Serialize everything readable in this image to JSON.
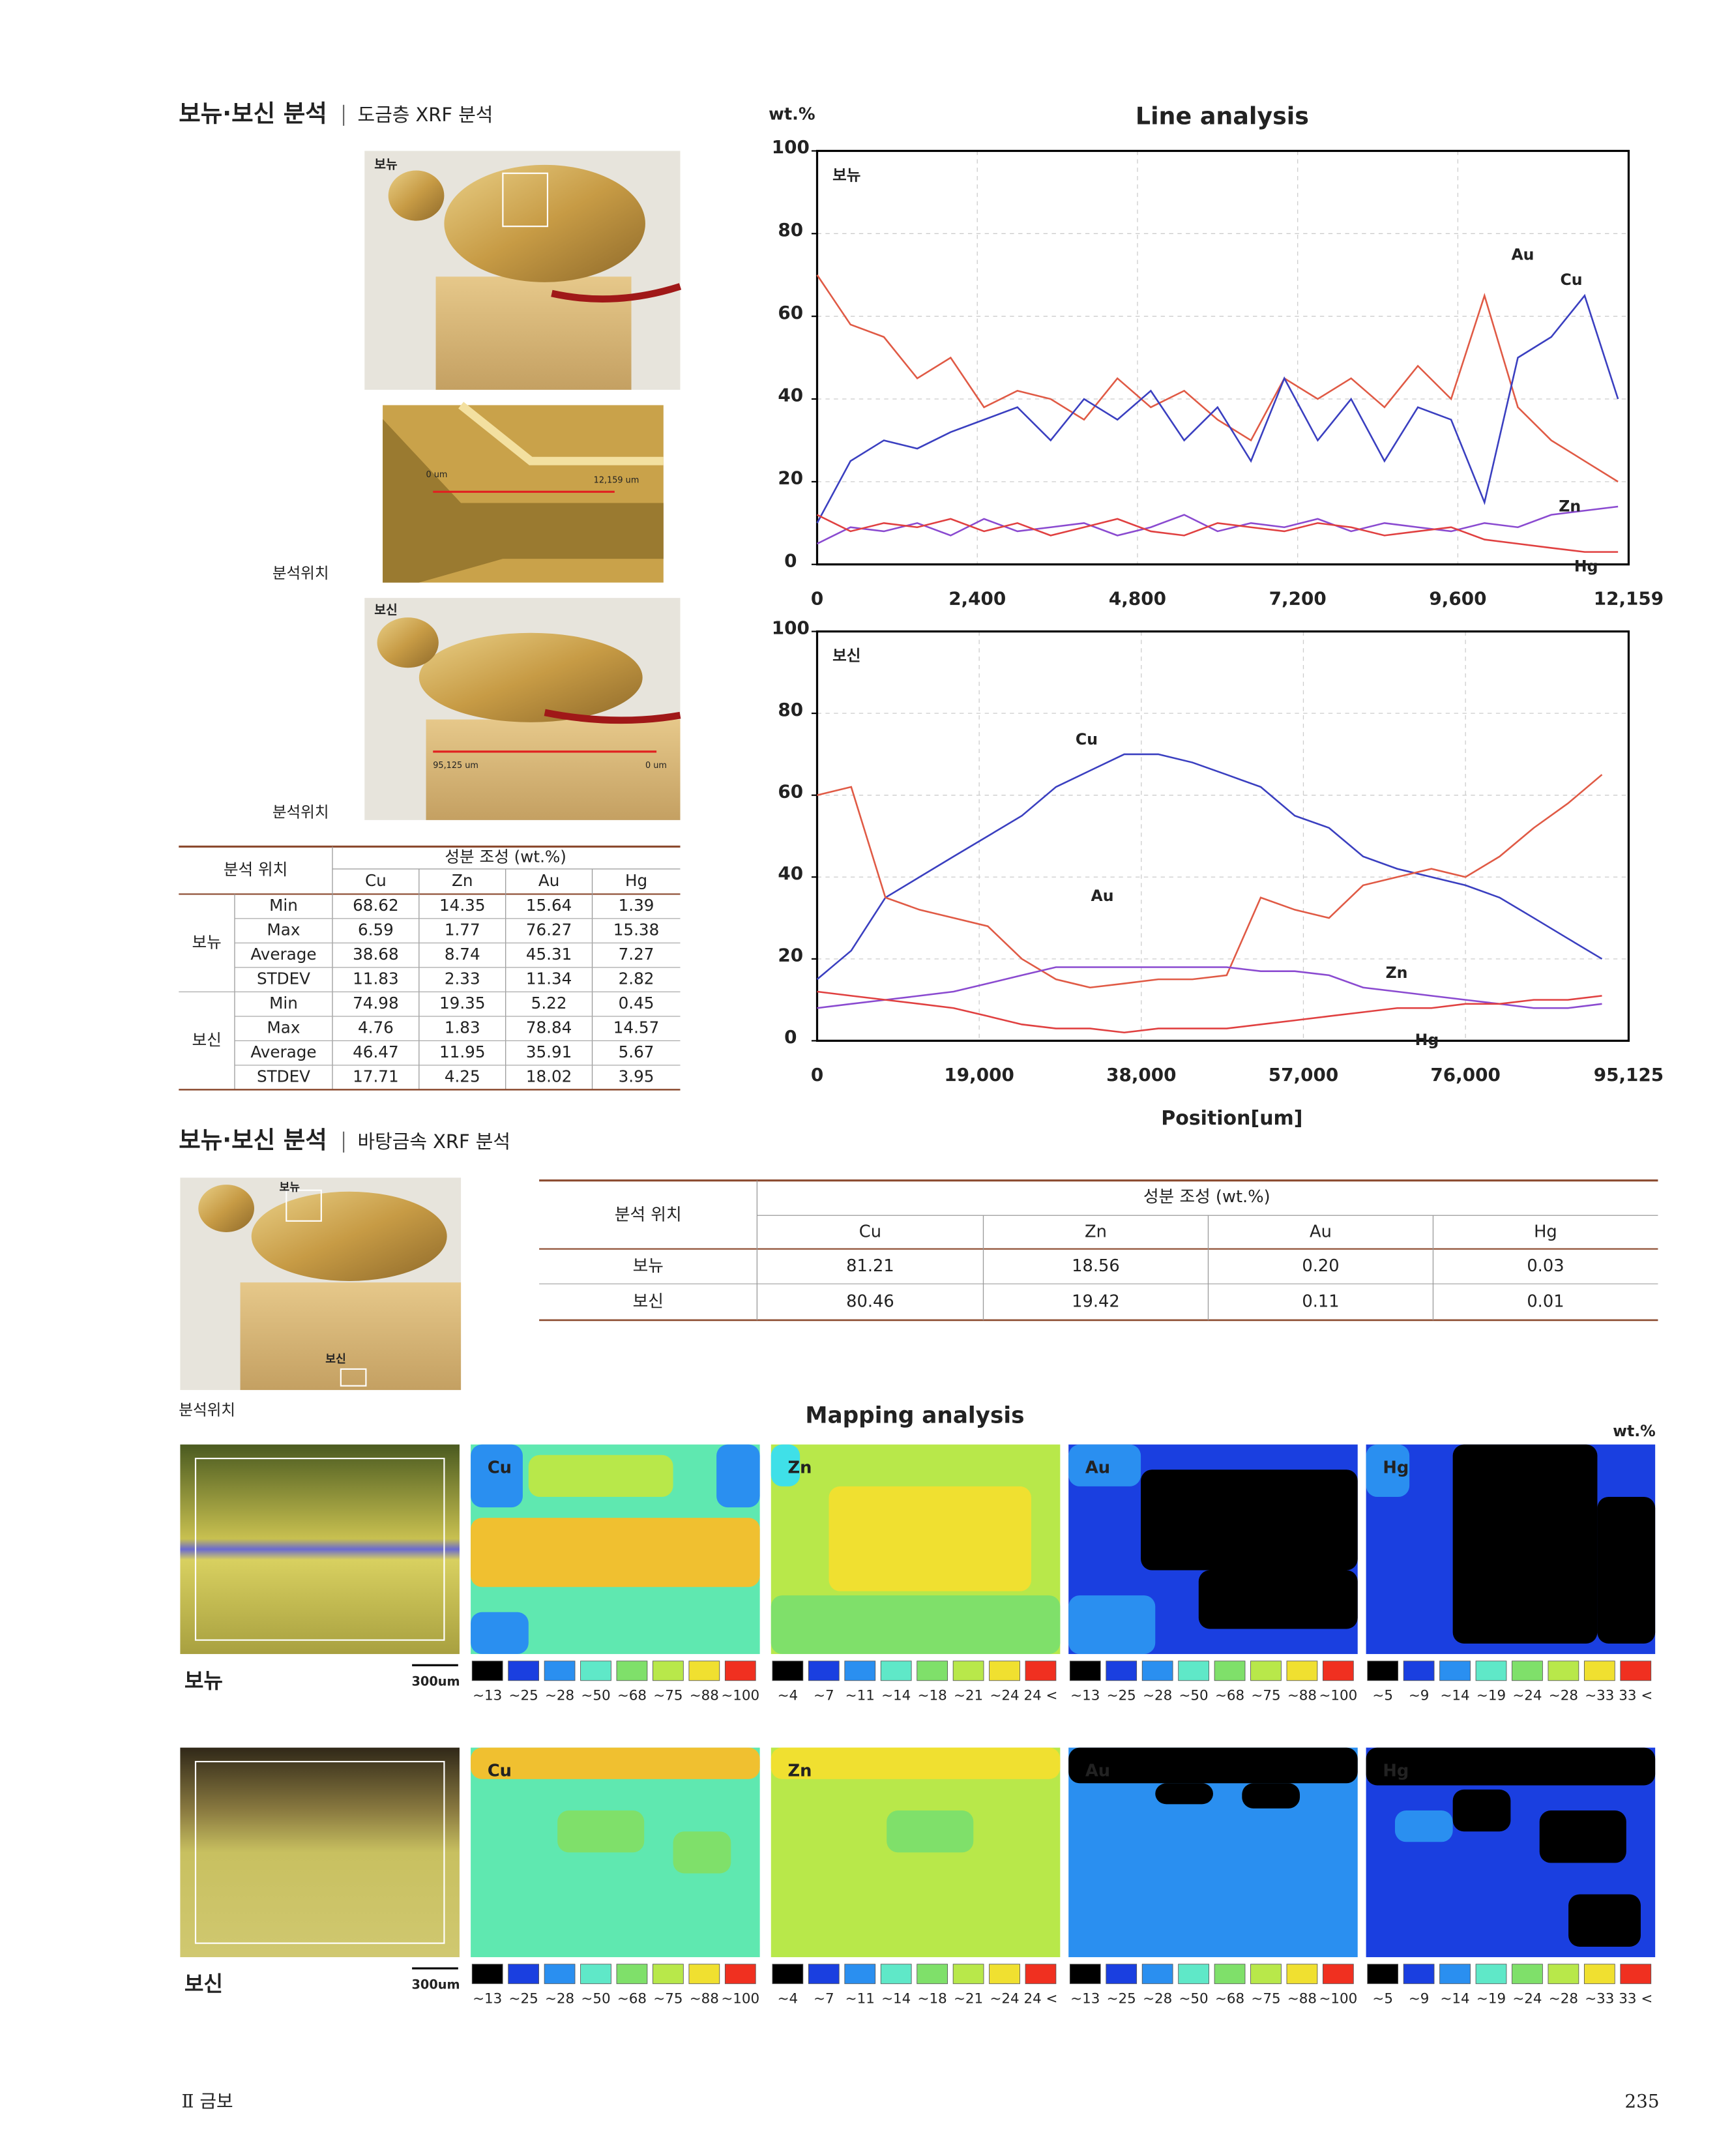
{
  "section1": {
    "title": "보뉴·보신 분석",
    "subtitle": "도금층 XRF 분석"
  },
  "photos": {
    "label1": "보뉴",
    "label2": "보신",
    "scale1_start": "0 um",
    "scale1_end": "12,159 um",
    "scale2_start": "95,125 um",
    "scale2_end": "0 um",
    "caption1": "분석위치",
    "caption2": "분석위치"
  },
  "table1": {
    "header_loc": "분석 위치",
    "header_comp": "성분 조성 (wt.%)",
    "columns": [
      "Cu",
      "Zn",
      "Au",
      "Hg"
    ],
    "groups": [
      {
        "name": "보뉴",
        "rows": [
          [
            "Min",
            "68.62",
            "14.35",
            "15.64",
            "1.39"
          ],
          [
            "Max",
            "6.59",
            "1.77",
            "76.27",
            "15.38"
          ],
          [
            "Average",
            "38.68",
            "8.74",
            "45.31",
            "7.27"
          ],
          [
            "STDEV",
            "11.83",
            "2.33",
            "11.34",
            "2.82"
          ]
        ]
      },
      {
        "name": "보신",
        "rows": [
          [
            "Min",
            "74.98",
            "19.35",
            "5.22",
            "0.45"
          ],
          [
            "Max",
            "4.76",
            "1.83",
            "78.84",
            "14.57"
          ],
          [
            "Average",
            "46.47",
            "11.95",
            "35.91",
            "5.67"
          ],
          [
            "STDEV",
            "17.71",
            "4.25",
            "18.02",
            "3.95"
          ]
        ]
      }
    ]
  },
  "line_analysis": {
    "title": "Line analysis",
    "y_unit": "wt.%",
    "x_label": "Position[um]",
    "charts": [
      {
        "type": "line",
        "label": "보뉴",
        "xlim": [
          0,
          12159
        ],
        "ylim": [
          0,
          100
        ],
        "xticks": [
          0,
          {
            "value": 2400,
            "label": "2,400"
          },
          {
            "value": 4800,
            "label": "4,800"
          },
          {
            "value": 7200,
            "label": "7,200"
          },
          {
            "value": 9600,
            "label": "9,600"
          },
          {
            "value": 12159,
            "label": "12,159"
          }
        ],
        "yticks": [
          0,
          20,
          40,
          60,
          80,
          100
        ],
        "x": [
          0,
          500,
          1000,
          1500,
          2000,
          2500,
          3000,
          3500,
          4000,
          4500,
          5000,
          5500,
          6000,
          6500,
          7000,
          7500,
          8000,
          8500,
          9000,
          9500,
          10000,
          10500,
          11000,
          11500,
          12000
        ],
        "series": [
          {
            "name": "Au",
            "color": "#e05a45",
            "values": [
              70,
              58,
              55,
              45,
              50,
              38,
              42,
              40,
              35,
              45,
              38,
              42,
              35,
              30,
              45,
              40,
              45,
              38,
              48,
              40,
              65,
              38,
              30,
              25,
              20
            ]
          },
          {
            "name": "Cu",
            "color": "#3a3fc0",
            "values": [
              10,
              25,
              30,
              28,
              32,
              35,
              38,
              30,
              40,
              35,
              42,
              30,
              38,
              25,
              45,
              30,
              40,
              25,
              38,
              35,
              15,
              50,
              55,
              65,
              40
            ]
          },
          {
            "name": "Zn",
            "color": "#8a4ad0",
            "values": [
              5,
              9,
              8,
              10,
              7,
              11,
              8,
              9,
              10,
              7,
              9,
              12,
              8,
              10,
              9,
              11,
              8,
              10,
              9,
              8,
              10,
              9,
              12,
              13,
              14
            ]
          },
          {
            "name": "Hg",
            "color": "#e04040",
            "values": [
              12,
              8,
              10,
              9,
              11,
              8,
              10,
              7,
              9,
              11,
              8,
              7,
              10,
              9,
              8,
              10,
              9,
              7,
              8,
              9,
              6,
              5,
              4,
              3,
              3
            ]
          }
        ]
      },
      {
        "type": "line",
        "label": "보신",
        "xlim": [
          0,
          95125
        ],
        "ylim": [
          0,
          100
        ],
        "xticks": [
          0,
          {
            "value": 19000,
            "label": "19,000"
          },
          {
            "value": 38000,
            "label": "38,000"
          },
          {
            "value": 57000,
            "label": "57,000"
          },
          {
            "value": 76000,
            "label": "76,000"
          },
          {
            "value": 95125,
            "label": "95,125"
          }
        ],
        "yticks": [
          0,
          20,
          40,
          60,
          80,
          100
        ],
        "x": [
          0,
          4000,
          8000,
          12000,
          16000,
          20000,
          24000,
          28000,
          32000,
          36000,
          40000,
          44000,
          48000,
          52000,
          56000,
          60000,
          64000,
          68000,
          72000,
          76000,
          80000,
          84000,
          88000,
          92000
        ],
        "series": [
          {
            "name": "Cu",
            "color": "#3a3fc0",
            "values": [
              15,
              22,
              35,
              40,
              45,
              50,
              55,
              62,
              66,
              70,
              70,
              68,
              65,
              62,
              55,
              52,
              45,
              42,
              40,
              38,
              35,
              30,
              25,
              20
            ]
          },
          {
            "name": "Au",
            "color": "#e05a45",
            "values": [
              60,
              62,
              35,
              32,
              30,
              28,
              20,
              15,
              13,
              14,
              15,
              15,
              16,
              35,
              32,
              30,
              38,
              40,
              42,
              40,
              45,
              52,
              58,
              65
            ]
          },
          {
            "name": "Zn",
            "color": "#8a4ad0",
            "values": [
              8,
              9,
              10,
              11,
              12,
              14,
              16,
              18,
              18,
              18,
              18,
              18,
              18,
              17,
              17,
              16,
              13,
              12,
              11,
              10,
              9,
              8,
              8,
              9
            ]
          },
          {
            "name": "Hg",
            "color": "#e04040",
            "values": [
              12,
              11,
              10,
              9,
              8,
              6,
              4,
              3,
              3,
              2,
              3,
              3,
              3,
              4,
              5,
              6,
              7,
              8,
              8,
              9,
              9,
              10,
              10,
              11
            ]
          }
        ]
      }
    ]
  },
  "section2": {
    "title": "보뉴·보신 분석",
    "subtitle": "바탕금속 XRF 분석",
    "photo_label1": "보뉴",
    "photo_label2": "보신",
    "caption": "분석위치"
  },
  "table2": {
    "header_loc": "분석 위치",
    "header_comp": "성분 조성 (wt.%)",
    "columns": [
      "Cu",
      "Zn",
      "Au",
      "Hg"
    ],
    "rows": [
      [
        "보뉴",
        "81.21",
        "18.56",
        "0.20",
        "0.03"
      ],
      [
        "보신",
        "80.46",
        "19.42",
        "0.11",
        "0.01"
      ]
    ]
  },
  "mapping": {
    "title": "Mapping analysis",
    "unit": "wt.%",
    "rows": [
      {
        "label": "보뉴",
        "scale": "300um",
        "panels": [
          {
            "element": "Cu",
            "legend": [
              "~13",
              "~25",
              "~28",
              "~50",
              "~68",
              "~75",
              "~88",
              "~100"
            ]
          },
          {
            "element": "Zn",
            "legend": [
              "~4",
              "~7",
              "~11",
              "~14",
              "~18",
              "~21",
              "~24",
              "24 <"
            ]
          },
          {
            "element": "Au",
            "legend": [
              "~13",
              "~25",
              "~28",
              "~50",
              "~68",
              "~75",
              "~88",
              "~100"
            ]
          },
          {
            "element": "Hg",
            "legend": [
              "~5",
              "~9",
              "~14",
              "~19",
              "~24",
              "~28",
              "~33",
              "33 <"
            ]
          }
        ]
      },
      {
        "label": "보신",
        "scale": "300um",
        "panels": [
          {
            "element": "Cu",
            "legend": [
              "~13",
              "~25",
              "~28",
              "~50",
              "~68",
              "~75",
              "~88",
              "~100"
            ]
          },
          {
            "element": "Zn",
            "legend": [
              "~4",
              "~7",
              "~11",
              "~14",
              "~18",
              "~21",
              "~24",
              "24 <"
            ]
          },
          {
            "element": "Au",
            "legend": [
              "~13",
              "~25",
              "~28",
              "~50",
              "~68",
              "~75",
              "~88",
              "~100"
            ]
          },
          {
            "element": "Hg",
            "legend": [
              "~5",
              "~9",
              "~14",
              "~19",
              "~24",
              "~28",
              "~33",
              "33 <"
            ]
          }
        ]
      }
    ]
  },
  "footer": {
    "section": "Ⅱ 금보",
    "page": "235"
  }
}
